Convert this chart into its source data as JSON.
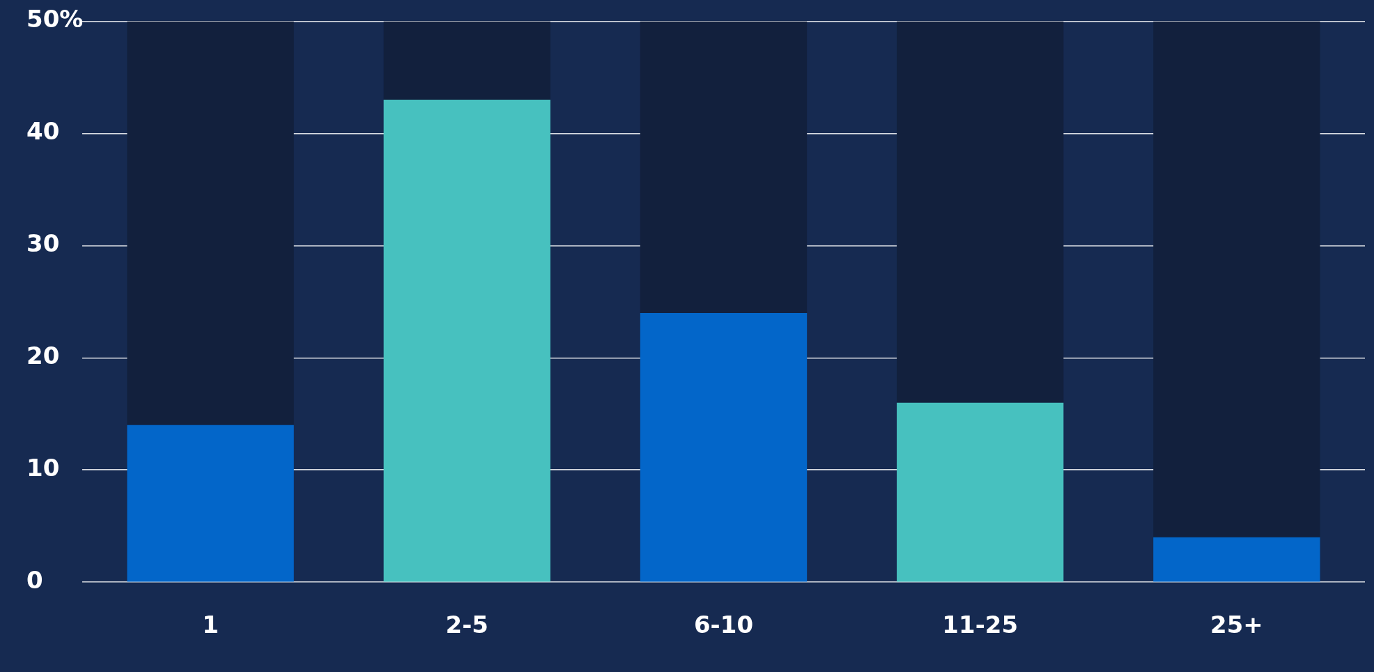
{
  "chart_data": {
    "type": "bar",
    "categories": [
      "1",
      "2-5",
      "6-10",
      "11-25",
      "25+"
    ],
    "series": [
      {
        "colors": [
          "#0366c9",
          "#47c1bf",
          "#0366c9",
          "#47c1bf",
          "#0366c9"
        ],
        "values": [
          14,
          43,
          24,
          16,
          4
        ]
      },
      {
        "color": "#12203d",
        "values": [
          36,
          7,
          26,
          34,
          46
        ]
      }
    ],
    "ylim": [
      0,
      50
    ],
    "yticks": [
      0,
      10,
      20,
      30,
      40,
      {
        "value": 50,
        "label": "50%"
      }
    ],
    "grid": "y",
    "legend": false,
    "stacked": true
  }
}
